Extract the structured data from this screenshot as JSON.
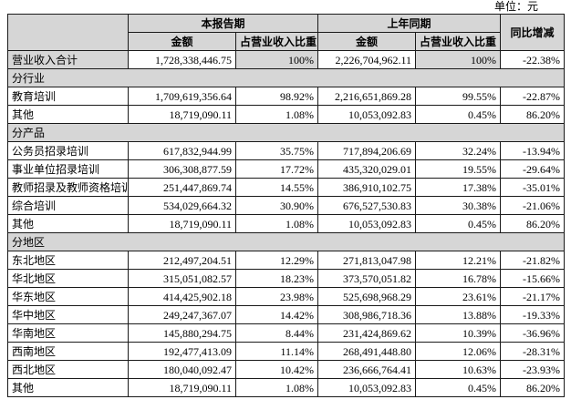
{
  "unit_label": "单位：元",
  "table": {
    "headers": {
      "corner": "",
      "current_period": "本报告期",
      "prior_period": "上年同期",
      "yoy_change": "同比增减",
      "amount": "金额",
      "pct_of_revenue": "占营业收入比重"
    },
    "colors": {
      "header_bg": "#d6d6d6",
      "section_bg": "#d6d6d6",
      "border": "#1a1a1a"
    },
    "total_row": {
      "label": "营业收入合计",
      "cells": [
        "1,728,338,446.75",
        "100%",
        "2,226,704,962.11",
        "100%",
        "-22.38%"
      ]
    },
    "sections": [
      {
        "title": "分行业",
        "rows": [
          {
            "label": "教育培训",
            "cells": [
              "1,709,619,356.64",
              "98.92%",
              "2,216,651,869.28",
              "99.55%",
              "-22.87%"
            ]
          },
          {
            "label": "其他",
            "cells": [
              "18,719,090.11",
              "1.08%",
              "10,053,092.83",
              "0.45%",
              "86.20%"
            ]
          }
        ]
      },
      {
        "title": "分产品",
        "rows": [
          {
            "label": "公务员招录培训",
            "cells": [
              "617,832,944.99",
              "35.75%",
              "717,894,206.69",
              "32.24%",
              "-13.94%"
            ]
          },
          {
            "label": "事业单位招录培训",
            "cells": [
              "306,308,877.59",
              "17.72%",
              "435,320,029.01",
              "19.55%",
              "-29.64%"
            ]
          },
          {
            "label": "教师招录及教师资格培训",
            "cells": [
              "251,447,869.74",
              "14.55%",
              "386,910,102.75",
              "17.38%",
              "-35.01%"
            ]
          },
          {
            "label": "综合培训",
            "cells": [
              "534,029,664.32",
              "30.90%",
              "676,527,530.83",
              "30.38%",
              "-21.06%"
            ]
          },
          {
            "label": "其他",
            "cells": [
              "18,719,090.11",
              "1.08%",
              "10,053,092.83",
              "0.45%",
              "86.20%"
            ]
          }
        ]
      },
      {
        "title": "分地区",
        "rows": [
          {
            "label": "东北地区",
            "cells": [
              "212,497,204.51",
              "12.29%",
              "271,813,047.98",
              "12.21%",
              "-21.82%"
            ]
          },
          {
            "label": "华北地区",
            "cells": [
              "315,051,082.57",
              "18.23%",
              "373,570,051.82",
              "16.78%",
              "-15.66%"
            ]
          },
          {
            "label": "华东地区",
            "cells": [
              "414,425,902.18",
              "23.98%",
              "525,698,968.29",
              "23.61%",
              "-21.17%"
            ]
          },
          {
            "label": "华中地区",
            "cells": [
              "249,247,367.07",
              "14.42%",
              "308,986,718.36",
              "13.88%",
              "-19.33%"
            ]
          },
          {
            "label": "华南地区",
            "cells": [
              "145,880,294.75",
              "8.44%",
              "231,424,869.62",
              "10.39%",
              "-36.96%"
            ]
          },
          {
            "label": "西南地区",
            "cells": [
              "192,477,413.09",
              "11.14%",
              "268,491,448.80",
              "12.06%",
              "-28.31%"
            ]
          },
          {
            "label": "西北地区",
            "cells": [
              "180,040,092.47",
              "10.42%",
              "236,666,764.41",
              "10.63%",
              "-23.93%"
            ]
          },
          {
            "label": "其他",
            "cells": [
              "18,719,090.11",
              "1.08%",
              "10,053,092.83",
              "0.45%",
              "86.20%"
            ]
          }
        ]
      }
    ]
  }
}
